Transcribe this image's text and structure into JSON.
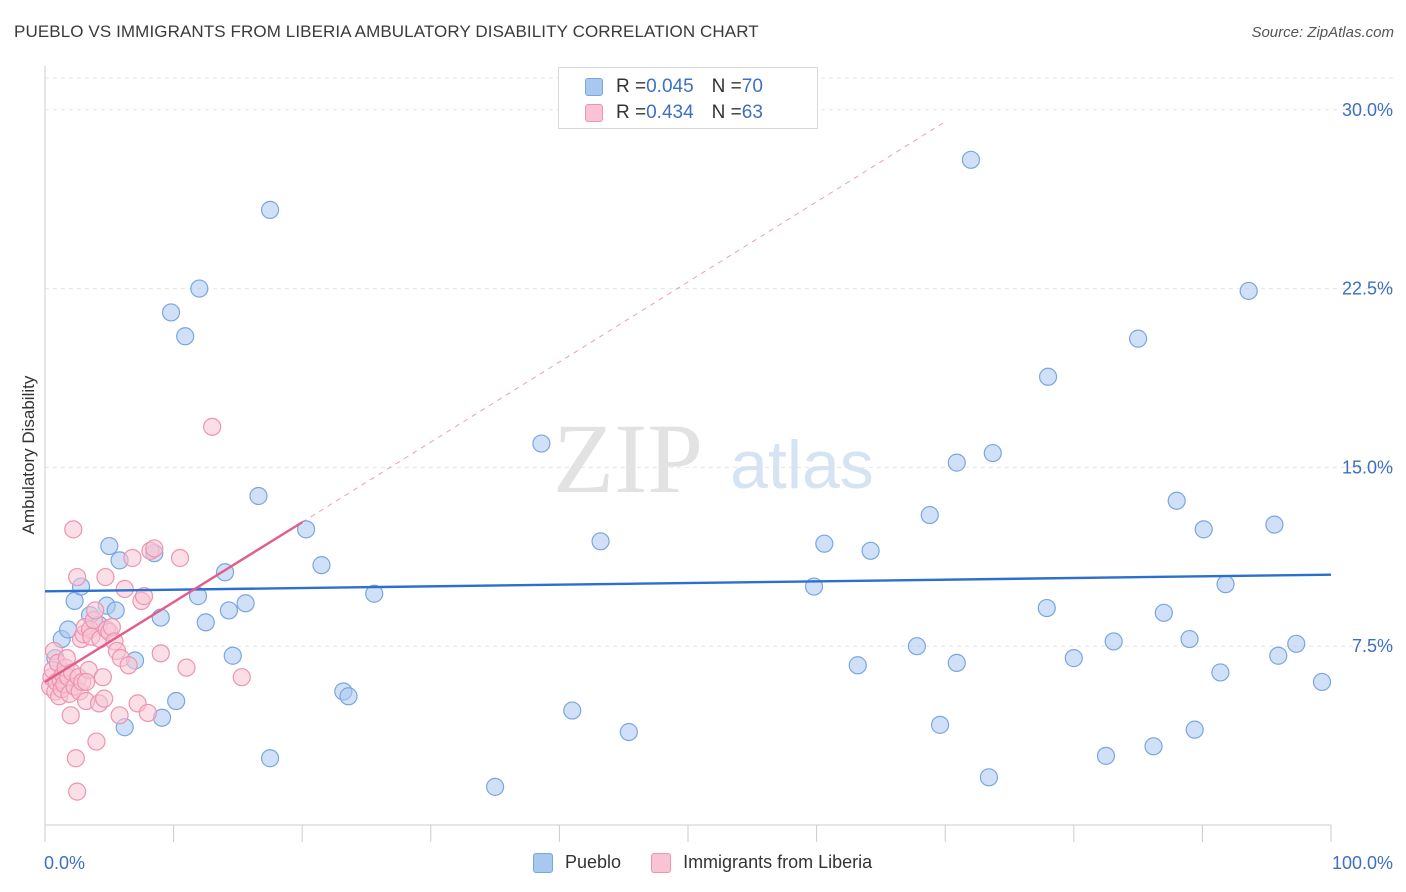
{
  "title": "PUEBLO VS IMMIGRANTS FROM LIBERIA AMBULATORY DISABILITY CORRELATION CHART",
  "source": "Source: ZipAtlas.com",
  "watermark": {
    "zip": "ZIP",
    "atlas": "atlas"
  },
  "legend_stats": [
    {
      "r_label": "R = ",
      "r_value": "0.045",
      "n_label": "N = ",
      "n_value": "70",
      "color": "#a9c8f0",
      "border": "#7aa6e0"
    },
    {
      "r_label": "R = ",
      "r_value": "0.434",
      "n_label": "N = ",
      "n_value": "63",
      "color": "#f8c4d4",
      "border": "#ee93b0"
    }
  ],
  "chart_data": {
    "type": "scatter",
    "title": "PUEBLO VS IMMIGRANTS FROM LIBERIA AMBULATORY DISABILITY CORRELATION CHART",
    "xlabel": "",
    "ylabel": "Ambulatory Disability",
    "xlim": [
      0,
      100
    ],
    "ylim": [
      0,
      31.5
    ],
    "x_tick_labels": [
      "0.0%",
      "100.0%"
    ],
    "y_ticks": [
      7.5,
      15.0,
      22.5,
      30.0
    ],
    "y_tick_labels": [
      "7.5%",
      "15.0%",
      "22.5%",
      "30.0%"
    ],
    "grid": true,
    "legend_position": "bottom",
    "series": [
      {
        "name": "Pueblo",
        "color": "#7aa6e0",
        "fill": "#a9c8f0",
        "trend": {
          "x0": 0,
          "y0": 9.8,
          "x1": 100,
          "y1": 10.5,
          "color": "#2b6fcf"
        },
        "points": [
          [
            0.8,
            7.0
          ],
          [
            1.3,
            7.8
          ],
          [
            1.8,
            8.2
          ],
          [
            2.3,
            9.4
          ],
          [
            2.8,
            10.0
          ],
          [
            3.5,
            8.8
          ],
          [
            4.2,
            8.4
          ],
          [
            4.8,
            9.2
          ],
          [
            5.0,
            11.7
          ],
          [
            5.5,
            9.0
          ],
          [
            5.8,
            11.1
          ],
          [
            6.2,
            4.1
          ],
          [
            7.0,
            6.9
          ],
          [
            8.5,
            11.4
          ],
          [
            9.0,
            8.7
          ],
          [
            9.1,
            4.5
          ],
          [
            10.2,
            5.2
          ],
          [
            9.8,
            21.5
          ],
          [
            10.9,
            20.5
          ],
          [
            11.9,
            9.6
          ],
          [
            12.0,
            22.5
          ],
          [
            12.5,
            8.5
          ],
          [
            14.0,
            10.6
          ],
          [
            14.3,
            9.0
          ],
          [
            14.6,
            7.1
          ],
          [
            15.6,
            9.3
          ],
          [
            16.6,
            13.8
          ],
          [
            17.5,
            25.8
          ],
          [
            17.5,
            2.8
          ],
          [
            20.3,
            12.4
          ],
          [
            21.5,
            10.9
          ],
          [
            23.2,
            5.6
          ],
          [
            23.6,
            5.4
          ],
          [
            25.6,
            9.7
          ],
          [
            35.0,
            1.6
          ],
          [
            38.6,
            16.0
          ],
          [
            41.0,
            4.8
          ],
          [
            43.2,
            11.9
          ],
          [
            45.4,
            3.9
          ],
          [
            59.8,
            10.0
          ],
          [
            60.6,
            11.8
          ],
          [
            63.2,
            6.7
          ],
          [
            64.2,
            11.5
          ],
          [
            67.8,
            7.5
          ],
          [
            68.8,
            13.0
          ],
          [
            69.6,
            4.2
          ],
          [
            70.9,
            6.8
          ],
          [
            70.9,
            15.2
          ],
          [
            72.0,
            27.9
          ],
          [
            73.4,
            2.0
          ],
          [
            73.7,
            15.6
          ],
          [
            77.9,
            9.1
          ],
          [
            78.0,
            18.8
          ],
          [
            80.0,
            7.0
          ],
          [
            82.5,
            2.9
          ],
          [
            83.1,
            7.7
          ],
          [
            85.0,
            20.4
          ],
          [
            86.2,
            3.3
          ],
          [
            87.0,
            8.9
          ],
          [
            88.0,
            13.6
          ],
          [
            89.0,
            7.8
          ],
          [
            89.4,
            4.0
          ],
          [
            90.1,
            12.4
          ],
          [
            91.4,
            6.4
          ],
          [
            91.8,
            10.1
          ],
          [
            93.6,
            22.4
          ],
          [
            95.6,
            12.6
          ],
          [
            95.9,
            7.1
          ],
          [
            97.3,
            7.6
          ],
          [
            99.3,
            6.0
          ]
        ]
      },
      {
        "name": "Immigrants from Liberia",
        "color": "#ee93b0",
        "fill": "#f8c4d4",
        "trend": {
          "x0": 0,
          "y0": 6.0,
          "x1": 20,
          "y1": 12.7,
          "color": "#e35d8b",
          "dash_to": {
            "x": 70,
            "y": 29.5
          }
        },
        "points": [
          [
            0.4,
            5.8
          ],
          [
            0.5,
            6.2
          ],
          [
            0.6,
            6.5
          ],
          [
            0.7,
            7.3
          ],
          [
            0.8,
            5.6
          ],
          [
            0.9,
            6.0
          ],
          [
            1.0,
            6.8
          ],
          [
            1.1,
            5.4
          ],
          [
            1.2,
            6.1
          ],
          [
            1.3,
            5.7
          ],
          [
            1.4,
            6.3
          ],
          [
            1.5,
            5.9
          ],
          [
            1.6,
            6.6
          ],
          [
            1.7,
            7.0
          ],
          [
            1.8,
            6.2
          ],
          [
            1.9,
            5.5
          ],
          [
            2.0,
            4.6
          ],
          [
            2.1,
            6.4
          ],
          [
            2.2,
            12.4
          ],
          [
            2.3,
            5.8
          ],
          [
            2.4,
            2.8
          ],
          [
            2.5,
            10.4
          ],
          [
            2.6,
            6.2
          ],
          [
            2.7,
            5.6
          ],
          [
            2.8,
            7.8
          ],
          [
            2.9,
            6.0
          ],
          [
            3.0,
            8.0
          ],
          [
            3.1,
            8.3
          ],
          [
            3.2,
            5.2
          ],
          [
            3.4,
            6.5
          ],
          [
            3.5,
            8.2
          ],
          [
            3.6,
            7.9
          ],
          [
            3.8,
            8.6
          ],
          [
            3.9,
            9.0
          ],
          [
            4.0,
            3.5
          ],
          [
            4.2,
            5.1
          ],
          [
            4.3,
            7.8
          ],
          [
            4.5,
            6.2
          ],
          [
            4.6,
            5.3
          ],
          [
            4.7,
            10.4
          ],
          [
            4.8,
            8.2
          ],
          [
            5.0,
            8.1
          ],
          [
            5.2,
            8.3
          ],
          [
            5.4,
            7.7
          ],
          [
            5.6,
            7.3
          ],
          [
            5.8,
            4.6
          ],
          [
            5.9,
            7.0
          ],
          [
            6.2,
            9.9
          ],
          [
            6.5,
            6.7
          ],
          [
            6.8,
            11.2
          ],
          [
            7.2,
            5.1
          ],
          [
            7.5,
            9.4
          ],
          [
            7.7,
            9.6
          ],
          [
            8.0,
            4.7
          ],
          [
            8.2,
            11.5
          ],
          [
            8.5,
            11.6
          ],
          [
            9.0,
            7.2
          ],
          [
            10.5,
            11.2
          ],
          [
            11.0,
            6.6
          ],
          [
            13.0,
            16.7
          ],
          [
            15.3,
            6.2
          ],
          [
            2.5,
            1.4
          ],
          [
            3.2,
            6.0
          ]
        ]
      }
    ]
  },
  "bottom_legend": [
    {
      "label": "Pueblo",
      "color": "#a9c8f0",
      "border": "#7aa6e0"
    },
    {
      "label": "Immigrants from Liberia",
      "color": "#f8c4d4",
      "border": "#ee93b0"
    }
  ]
}
